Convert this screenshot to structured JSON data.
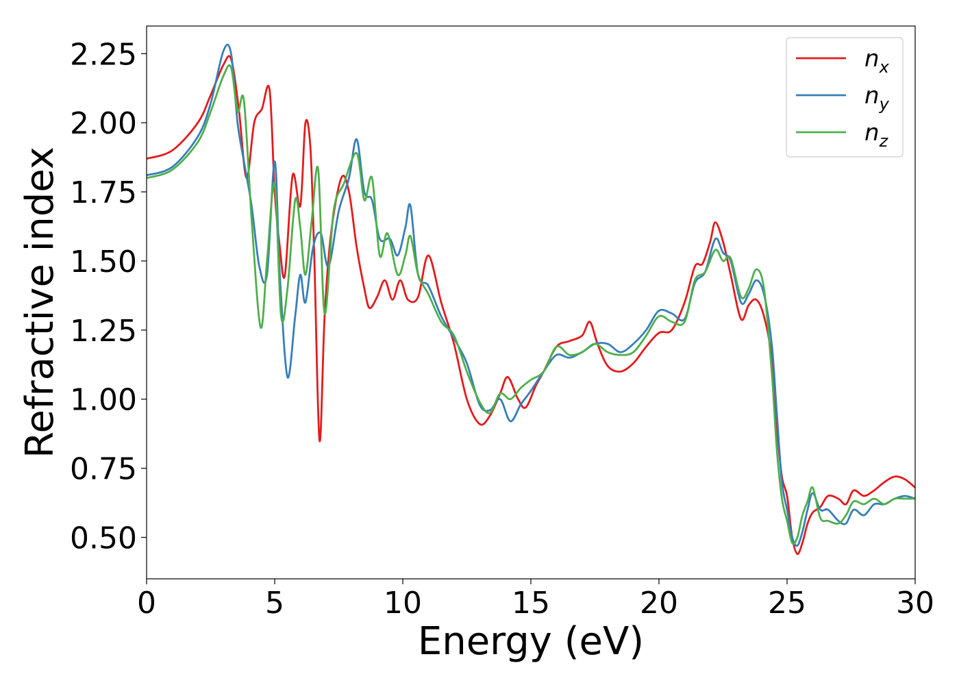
{
  "chart_data": {
    "type": "line",
    "title": "",
    "xlabel": "Energy (eV)",
    "ylabel": "Refractive index",
    "xlim": [
      0,
      30
    ],
    "ylim": [
      0.35,
      2.35
    ],
    "xticks": [
      0,
      5,
      10,
      15,
      20,
      25,
      30
    ],
    "xtick_labels": [
      "0",
      "5",
      "10",
      "15",
      "20",
      "25",
      "30"
    ],
    "yticks": [
      0.5,
      0.75,
      1.0,
      1.25,
      1.5,
      1.75,
      2.0,
      2.25
    ],
    "ytick_labels": [
      "0.50",
      "0.75",
      "1.00",
      "1.25",
      "1.50",
      "1.75",
      "2.00",
      "2.25"
    ],
    "grid": false,
    "legend_position": "top-right",
    "series": [
      {
        "name": "n_x",
        "legend": {
          "base": "n",
          "sub": "x"
        },
        "color": "#e41a1c",
        "x": [
          0,
          1,
          2,
          2.5,
          3,
          3.3,
          3.6,
          3.9,
          4.2,
          4.5,
          4.8,
          5.0,
          5.2,
          5.4,
          5.7,
          6.0,
          6.2,
          6.4,
          6.55,
          6.75,
          6.95,
          7.2,
          7.6,
          7.9,
          8.2,
          8.5,
          8.7,
          9.0,
          9.3,
          9.6,
          9.9,
          10.2,
          10.6,
          11.0,
          11.5,
          12.0,
          12.5,
          13.0,
          13.4,
          13.8,
          14.1,
          14.5,
          14.8,
          15.2,
          15.5,
          16.0,
          16.5,
          17.0,
          17.3,
          17.6,
          18.0,
          18.5,
          19.0,
          19.5,
          20.0,
          20.5,
          21.0,
          21.4,
          21.7,
          22.0,
          22.2,
          22.5,
          22.8,
          23.2,
          23.5,
          23.8,
          24.1,
          24.4,
          24.6,
          24.8,
          25.0,
          25.2,
          25.4,
          25.6,
          25.8,
          26.0,
          26.3,
          26.6,
          27.0,
          27.3,
          27.6,
          28.0,
          28.4,
          28.8,
          29.2,
          29.6,
          30.0
        ],
        "y": [
          1.87,
          1.9,
          2.0,
          2.1,
          2.21,
          2.23,
          2.05,
          1.8,
          2.0,
          2.05,
          2.12,
          1.75,
          1.55,
          1.45,
          1.81,
          1.7,
          2.0,
          1.9,
          1.5,
          0.85,
          1.3,
          1.6,
          1.8,
          1.75,
          1.55,
          1.4,
          1.33,
          1.37,
          1.43,
          1.36,
          1.43,
          1.36,
          1.37,
          1.52,
          1.35,
          1.2,
          1.0,
          0.91,
          0.94,
          1.02,
          1.08,
          1.0,
          0.97,
          1.05,
          1.1,
          1.19,
          1.21,
          1.23,
          1.28,
          1.2,
          1.12,
          1.1,
          1.13,
          1.19,
          1.24,
          1.25,
          1.35,
          1.48,
          1.49,
          1.57,
          1.64,
          1.57,
          1.45,
          1.29,
          1.34,
          1.36,
          1.3,
          1.15,
          0.9,
          0.72,
          0.65,
          0.5,
          0.44,
          0.48,
          0.55,
          0.59,
          0.61,
          0.65,
          0.64,
          0.62,
          0.67,
          0.65,
          0.67,
          0.7,
          0.72,
          0.71,
          0.68
        ]
      },
      {
        "name": "n_y",
        "legend": {
          "base": "n",
          "sub": "y"
        },
        "color": "#377eb8",
        "x": [
          0,
          1,
          2,
          2.5,
          3,
          3.3,
          3.55,
          3.8,
          4.1,
          4.4,
          4.7,
          5.0,
          5.2,
          5.5,
          5.8,
          6.0,
          6.2,
          6.5,
          6.8,
          7.1,
          7.5,
          7.9,
          8.2,
          8.5,
          8.8,
          9.1,
          9.5,
          9.8,
          10.1,
          10.3,
          10.6,
          11.0,
          11.5,
          12.0,
          12.5,
          13.0,
          13.4,
          13.8,
          14.2,
          14.6,
          15.0,
          15.5,
          16.0,
          16.5,
          17.0,
          17.5,
          18.0,
          18.5,
          19.0,
          19.5,
          20.0,
          20.5,
          21.0,
          21.4,
          21.8,
          22.2,
          22.5,
          22.8,
          23.2,
          23.5,
          23.8,
          24.1,
          24.4,
          24.6,
          24.8,
          25.0,
          25.2,
          25.4,
          25.6,
          25.8,
          26.0,
          26.3,
          26.6,
          27.0,
          27.3,
          27.6,
          28.0,
          28.4,
          28.8,
          29.2,
          29.6,
          30.0
        ],
        "y": [
          1.81,
          1.84,
          1.95,
          2.07,
          2.26,
          2.25,
          2.0,
          1.86,
          1.7,
          1.48,
          1.45,
          1.86,
          1.45,
          1.08,
          1.3,
          1.45,
          1.35,
          1.55,
          1.6,
          1.48,
          1.68,
          1.8,
          1.94,
          1.75,
          1.72,
          1.58,
          1.58,
          1.52,
          1.62,
          1.7,
          1.45,
          1.41,
          1.3,
          1.22,
          1.13,
          0.98,
          0.96,
          1.0,
          0.92,
          0.98,
          1.03,
          1.1,
          1.16,
          1.15,
          1.17,
          1.2,
          1.2,
          1.17,
          1.2,
          1.25,
          1.32,
          1.31,
          1.29,
          1.42,
          1.46,
          1.58,
          1.53,
          1.5,
          1.35,
          1.38,
          1.43,
          1.38,
          1.2,
          0.95,
          0.7,
          0.6,
          0.5,
          0.47,
          0.52,
          0.6,
          0.66,
          0.6,
          0.6,
          0.56,
          0.55,
          0.6,
          0.58,
          0.62,
          0.62,
          0.64,
          0.65,
          0.64
        ]
      },
      {
        "name": "n_z",
        "legend": {
          "base": "n",
          "sub": "z"
        },
        "color": "#4daf4a",
        "x": [
          0,
          1,
          2,
          2.5,
          3,
          3.3,
          3.55,
          3.8,
          4.1,
          4.45,
          4.7,
          5.0,
          5.25,
          5.5,
          5.8,
          6.0,
          6.2,
          6.45,
          6.7,
          6.95,
          7.3,
          7.7,
          8.2,
          8.5,
          8.8,
          9.1,
          9.4,
          9.8,
          10.1,
          10.3,
          10.6,
          11.0,
          11.5,
          12.0,
          12.5,
          13.0,
          13.4,
          13.8,
          14.2,
          14.6,
          15.0,
          15.5,
          16.0,
          16.5,
          17.0,
          17.5,
          18.0,
          18.5,
          19.0,
          19.5,
          20.0,
          20.5,
          21.0,
          21.4,
          21.8,
          22.2,
          22.5,
          22.8,
          23.2,
          23.5,
          23.8,
          24.1,
          24.4,
          24.6,
          24.8,
          25.0,
          25.2,
          25.4,
          25.6,
          25.8,
          26.0,
          26.3,
          26.6,
          27.0,
          27.3,
          27.6,
          28.0,
          28.4,
          28.8,
          29.2,
          29.6,
          30.0
        ],
        "y": [
          1.8,
          1.83,
          1.93,
          2.04,
          2.17,
          2.2,
          2.04,
          2.08,
          1.65,
          1.26,
          1.5,
          1.78,
          1.3,
          1.4,
          1.72,
          1.62,
          1.45,
          1.65,
          1.83,
          1.31,
          1.68,
          1.78,
          1.89,
          1.72,
          1.8,
          1.52,
          1.6,
          1.45,
          1.52,
          1.59,
          1.45,
          1.38,
          1.28,
          1.23,
          1.1,
          0.99,
          0.95,
          1.02,
          1.0,
          1.04,
          1.07,
          1.1,
          1.19,
          1.16,
          1.17,
          1.2,
          1.17,
          1.16,
          1.17,
          1.23,
          1.3,
          1.28,
          1.28,
          1.43,
          1.46,
          1.54,
          1.5,
          1.51,
          1.37,
          1.4,
          1.47,
          1.4,
          1.1,
          0.82,
          0.64,
          0.56,
          0.48,
          0.5,
          0.58,
          0.63,
          0.68,
          0.57,
          0.56,
          0.55,
          0.58,
          0.63,
          0.62,
          0.64,
          0.62,
          0.64,
          0.64,
          0.64
        ]
      }
    ]
  }
}
